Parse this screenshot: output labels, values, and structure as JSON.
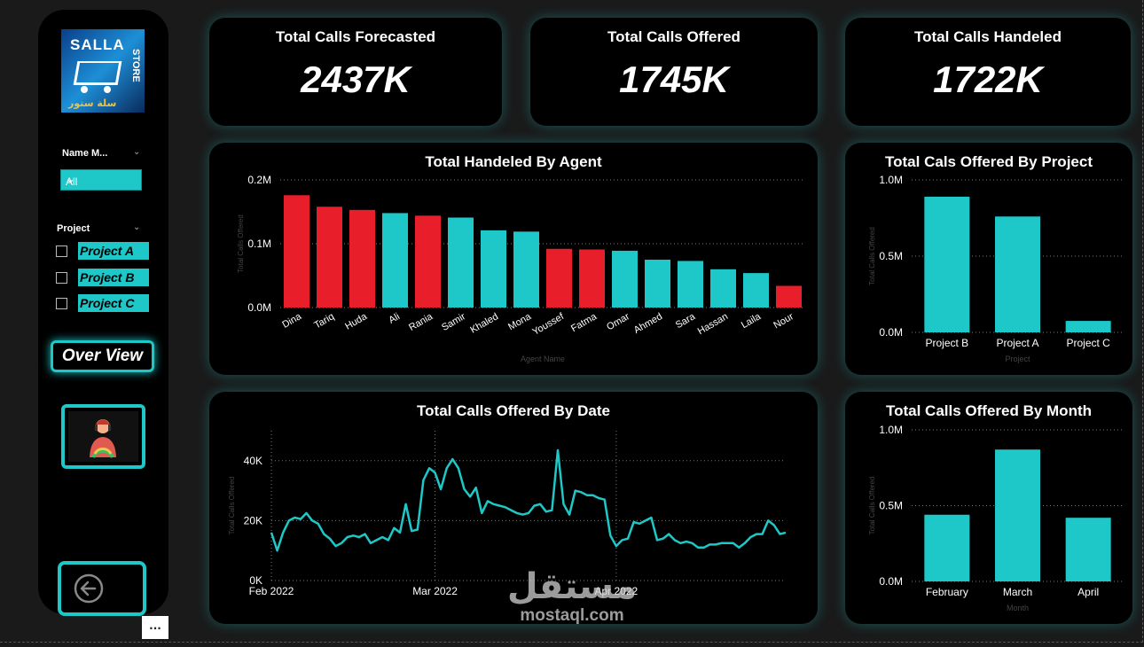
{
  "sidebar": {
    "logo": {
      "line1": "SALLA",
      "line2": "STORE",
      "line3": "سلة ستور"
    },
    "name_slicer": {
      "title": "Name M...",
      "value": "All"
    },
    "project_slicer": {
      "title": "Project",
      "items": [
        {
          "label": "Project A",
          "checked": false
        },
        {
          "label": "Project B",
          "checked": false
        },
        {
          "label": "Project C",
          "checked": false
        }
      ]
    },
    "overview_label": "Over View",
    "agent_icon": "agent-headset-icon",
    "back_icon": "back-arrow-icon",
    "more_label": "..."
  },
  "kpis": [
    {
      "title": "Total Calls Forecasted",
      "value": "2437K"
    },
    {
      "title": "Total Calls Offered",
      "value": "1745K"
    },
    {
      "title": "Total Calls Handeled",
      "value": "1722K"
    }
  ],
  "colors": {
    "teal": "#1ec8c8",
    "red": "#e81e2a",
    "card": "#000000"
  },
  "watermark": {
    "arabic": "مستقل",
    "latin": "mostaql.com"
  },
  "chart_data": [
    {
      "id": "agent",
      "type": "bar",
      "title": "Total Handeled By Agent",
      "xlabel": "Agent Name",
      "ylabel": "Total Calls Offered",
      "ylim": [
        0,
        200000
      ],
      "yticks": [
        {
          "v": 0,
          "label": "0.0M"
        },
        {
          "v": 100000,
          "label": "0.1M"
        },
        {
          "v": 200000,
          "label": "0.2M"
        }
      ],
      "categories": [
        "Dina",
        "Tariq",
        "Huda",
        "Ali",
        "Rania",
        "Samir",
        "Khaled",
        "Mona",
        "Youssef",
        "Fatma",
        "Omar",
        "Ahmed",
        "Sara",
        "Hassan",
        "Laila",
        "Nour"
      ],
      "values": [
        176000,
        158000,
        153000,
        148000,
        144000,
        141000,
        121000,
        119000,
        92000,
        91000,
        89000,
        75000,
        73000,
        60000,
        54000,
        34000
      ],
      "bar_colors": [
        "red",
        "red",
        "red",
        "teal",
        "red",
        "teal",
        "teal",
        "teal",
        "red",
        "red",
        "teal",
        "teal",
        "teal",
        "teal",
        "teal",
        "red"
      ],
      "grid": true
    },
    {
      "id": "project",
      "type": "bar",
      "title": "Total Cals Offered By Project",
      "xlabel": "Project",
      "ylabel": "Total Calls Offered",
      "ylim": [
        0,
        1000000
      ],
      "yticks": [
        {
          "v": 0,
          "label": "0.0M"
        },
        {
          "v": 500000,
          "label": "0.5M"
        },
        {
          "v": 1000000,
          "label": "1.0M"
        }
      ],
      "categories": [
        "Project B",
        "Project A",
        "Project C"
      ],
      "values": [
        890000,
        760000,
        75000
      ],
      "grid": true
    },
    {
      "id": "date",
      "type": "line",
      "title": "Total Calls Offered By Date",
      "xlabel": "",
      "ylabel": "Total Calls Offered",
      "ylim": [
        0,
        50000
      ],
      "yticks": [
        {
          "v": 0,
          "label": "0K"
        },
        {
          "v": 20000,
          "label": "20K"
        },
        {
          "v": 40000,
          "label": "40K"
        }
      ],
      "xticks": [
        {
          "i": 0,
          "label": "Feb 2022"
        },
        {
          "i": 28,
          "label": "Mar 2022"
        },
        {
          "i": 59,
          "label": "Apr 2022"
        }
      ],
      "values": [
        16000,
        10000,
        16000,
        20000,
        21000,
        20500,
        22500,
        20000,
        19000,
        15500,
        14000,
        11500,
        12500,
        14500,
        15000,
        14500,
        15500,
        12500,
        13500,
        14500,
        13500,
        17500,
        16000,
        25500,
        16500,
        17000,
        33500,
        37500,
        36000,
        30500,
        37500,
        40500,
        37500,
        30500,
        28000,
        31000,
        22500,
        26500,
        25500,
        25000,
        24500,
        23500,
        22500,
        22000,
        22500,
        25000,
        25500,
        23000,
        23500,
        43500,
        25500,
        22000,
        30000,
        29500,
        28500,
        28500,
        27500,
        27000,
        15000,
        11500,
        13500,
        14000,
        19500,
        19000,
        20000,
        21000,
        13500,
        14000,
        15500,
        13500,
        12500,
        13000,
        12500,
        11000,
        11000,
        12000,
        12000,
        12500,
        12500,
        12500,
        11000,
        12500,
        14500,
        15500,
        15500,
        20000,
        18500,
        15500,
        16000
      ],
      "grid": true
    },
    {
      "id": "month",
      "type": "bar",
      "title": "Total Calls Offered By Month",
      "xlabel": "Month",
      "ylabel": "Total Calls Offered",
      "ylim": [
        0,
        1000000
      ],
      "yticks": [
        {
          "v": 0,
          "label": "0.0M"
        },
        {
          "v": 500000,
          "label": "0.5M"
        },
        {
          "v": 1000000,
          "label": "1.0M"
        }
      ],
      "categories": [
        "February",
        "March",
        "April"
      ],
      "values": [
        440000,
        870000,
        420000
      ],
      "grid": true
    }
  ]
}
